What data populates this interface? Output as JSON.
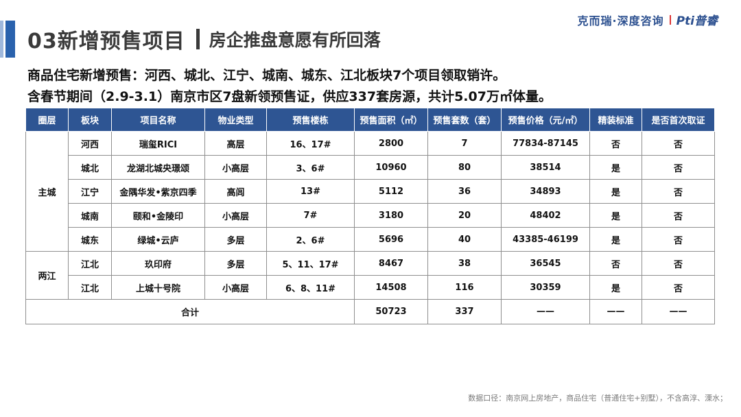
{
  "header": {
    "title_main": "03新增预售项目",
    "title_sub": "房企推盘意愿有所回落"
  },
  "brand": {
    "company": "克而瑞·深度咨询",
    "logo_mark": "Pti",
    "logo_text": "普睿"
  },
  "description": {
    "line1": "商品住宅新增预售：河西、城北、江宁、城南、城东、江北板块7个项目领取销许。",
    "line2": "含春节期间（2.9-3.1）南京市区7盘新领预售证，供应337套房源，共计5.07万㎡体量。"
  },
  "table": {
    "headers": [
      "圈层",
      "板块",
      "项目名称",
      "物业类型",
      "预售楼栋",
      "预售面积（㎡）",
      "预售套数（套）",
      "预售价格（元/㎡）",
      "精装标准",
      "是否首次取证"
    ],
    "groups": [
      {
        "ring": "主城",
        "rows": [
          [
            "河西",
            "瑞玺RICI",
            "高层",
            "16、17#",
            "2800",
            "7",
            "77834-87145",
            "否",
            "否"
          ],
          [
            "城北",
            "龙湖北城央璟颂",
            "小高层",
            "3、6#",
            "10960",
            "80",
            "38514",
            "是",
            "否"
          ],
          [
            "江宁",
            "金隅华发•紫京四季",
            "高闾",
            "13#",
            "5112",
            "36",
            "34893",
            "是",
            "否"
          ],
          [
            "城南",
            "颐和•金陵印",
            "小高层",
            "7#",
            "3180",
            "20",
            "48402",
            "是",
            "否"
          ],
          [
            "城东",
            "绿城•云庐",
            "多层",
            "2、6#",
            "5696",
            "40",
            "43385-46199",
            "是",
            "否"
          ]
        ]
      },
      {
        "ring": "两江",
        "rows": [
          [
            "江北",
            "玖印府",
            "多层",
            "5、11、17#",
            "8467",
            "38",
            "36545",
            "否",
            "否"
          ],
          [
            "江北",
            "上城十号院",
            "小高层",
            "6、8、11#",
            "14508",
            "116",
            "30359",
            "是",
            "否"
          ]
        ]
      }
    ],
    "total": {
      "label": "合计",
      "area": "50723",
      "units": "337",
      "price": "——",
      "finish": "——",
      "first": "——"
    }
  },
  "footnote": "数据口径：南京网上房地产，商品住宅（普通住宅+别墅），不含高淳、溧水；"
}
